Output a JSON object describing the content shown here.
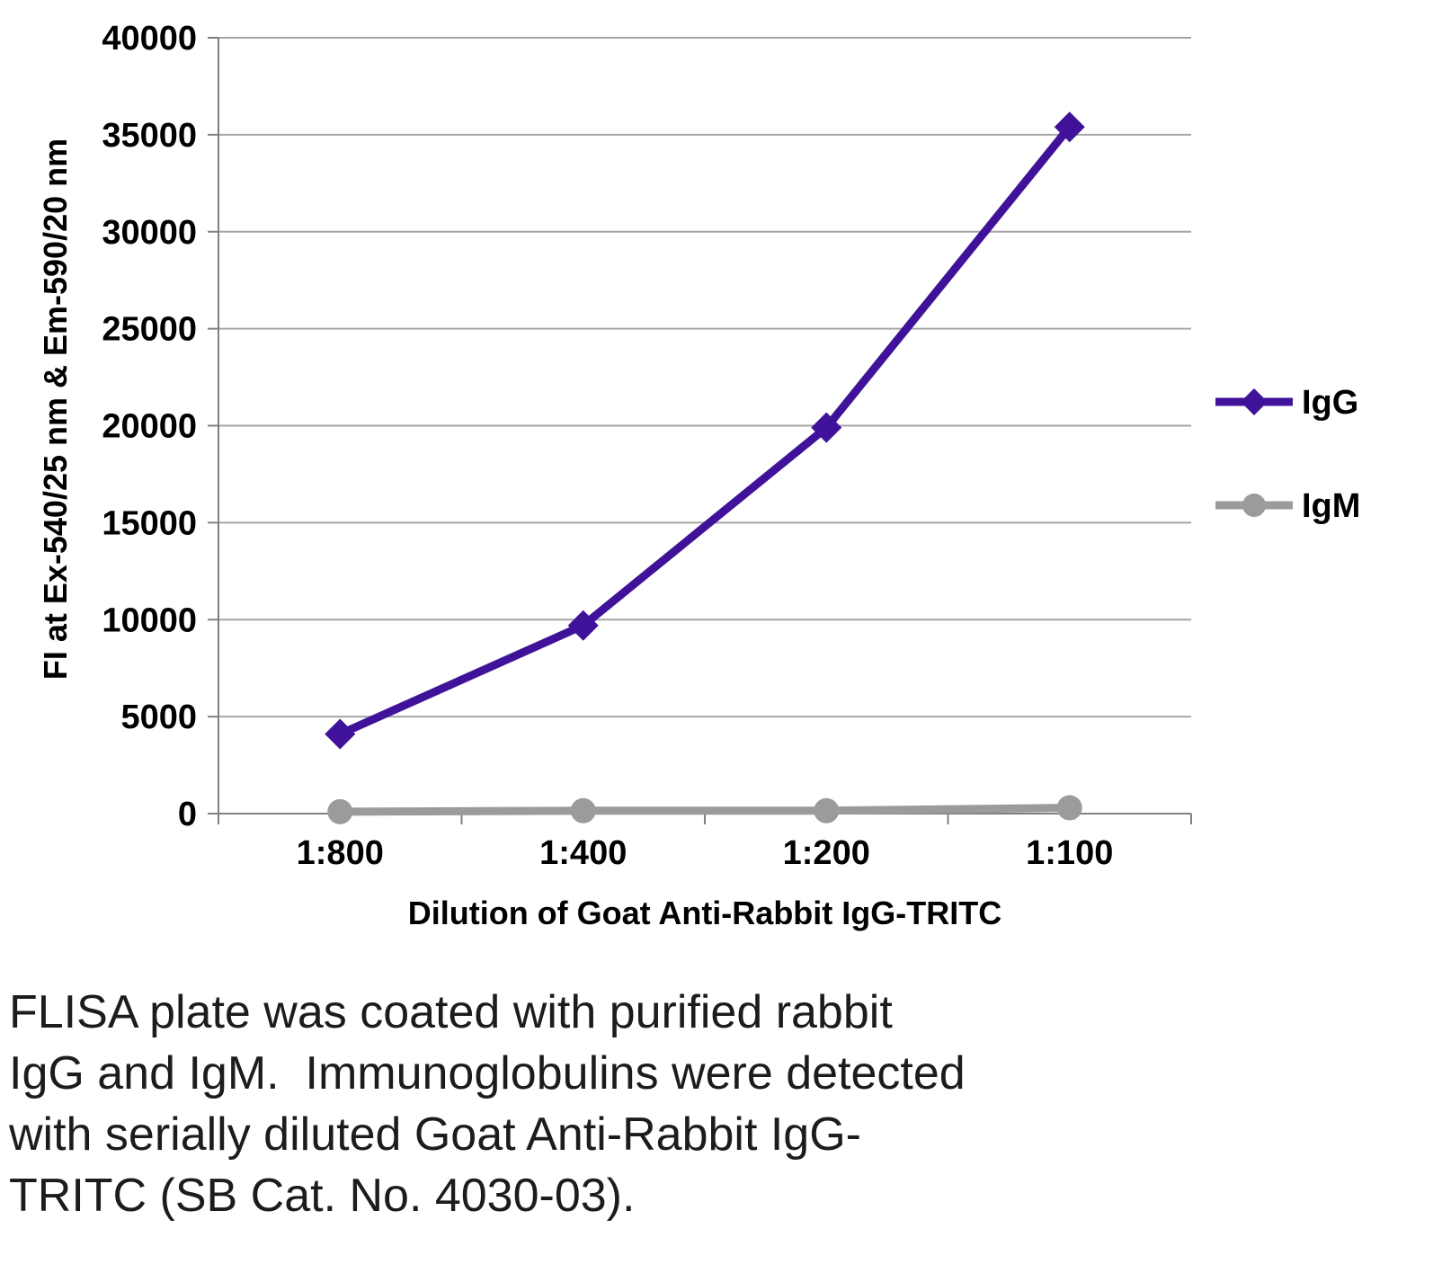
{
  "chart_data": {
    "type": "line",
    "x": [
      "1:800",
      "1:400",
      "1:200",
      "1:100"
    ],
    "series": [
      {
        "name": "IgG",
        "color": "#3f1299",
        "marker": "diamond",
        "values": [
          4100,
          9700,
          19900,
          35400
        ]
      },
      {
        "name": "IgM",
        "color": "#9b9b9b",
        "marker": "circle",
        "values": [
          100,
          150,
          150,
          300
        ]
      }
    ],
    "xlabel": "Dilution of Goat Anti-Rabbit IgG-TRITC",
    "ylabel": "FI at Ex-540/25 nm & Em-590/20 nm",
    "ylim": [
      0,
      40000
    ],
    "ytick_step": 5000,
    "grid": true,
    "legend_position": "right",
    "colors": {
      "grid": "#a6a6a6",
      "axis": "#808080",
      "text": "#000000"
    }
  },
  "caption": {
    "lines": [
      "FLISA plate was coated with purified rabbit",
      "IgG and IgM.  Immunoglobulins were detected",
      "with serially diluted Goat Anti-Rabbit IgG-",
      "TRITC (SB Cat. No. 4030-03)."
    ]
  }
}
